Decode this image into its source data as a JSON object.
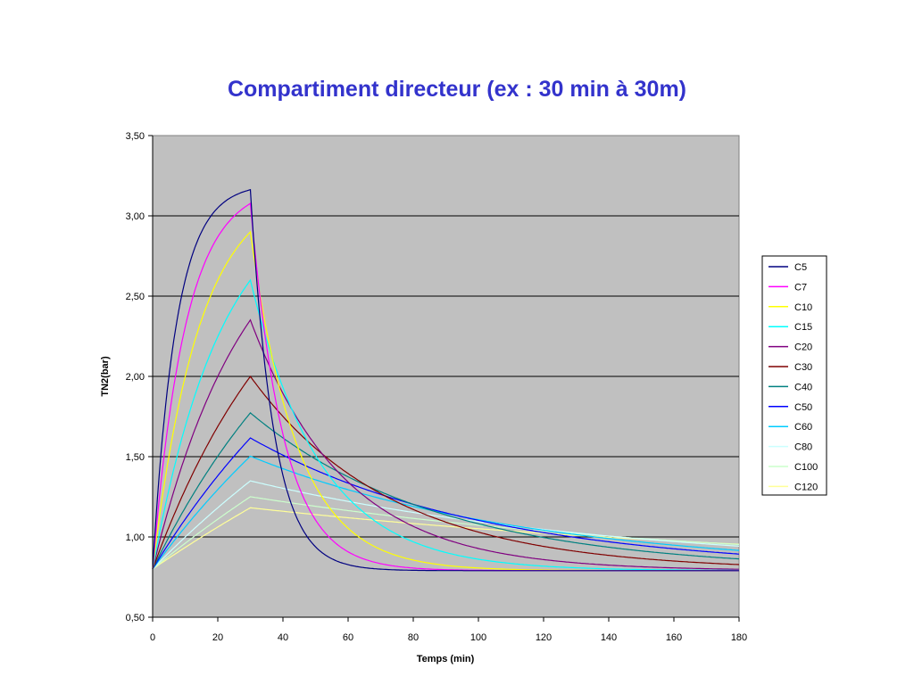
{
  "chart_data": {
    "type": "line",
    "title": "Compartiment directeur (ex : 30 min à 30m)",
    "xlabel": "Temps (min)",
    "ylabel": "TN2(bar)",
    "xlim": [
      0,
      180
    ],
    "ylim": [
      0.5,
      3.5
    ],
    "x_ticks": [
      "0",
      "20",
      "40",
      "60",
      "80",
      "100",
      "120",
      "140",
      "160",
      "180"
    ],
    "y_ticks": [
      "0,50",
      "1,00",
      "1,50",
      "2,00",
      "2,50",
      "3,00",
      "3,50"
    ],
    "grid": "horizontal",
    "legend_position": "right",
    "plot_background": "#c0c0c0",
    "series": [
      {
        "name": "C5",
        "color": "#000080",
        "half_time_min": 5
      },
      {
        "name": "C7",
        "color": "#ff00ff",
        "half_time_min": 7
      },
      {
        "name": "C10",
        "color": "#ffff00",
        "half_time_min": 10
      },
      {
        "name": "C15",
        "color": "#00ffff",
        "half_time_min": 15
      },
      {
        "name": "C20",
        "color": "#800080",
        "half_time_min": 20
      },
      {
        "name": "C30",
        "color": "#800000",
        "half_time_min": 30
      },
      {
        "name": "C40",
        "color": "#008080",
        "half_time_min": 40
      },
      {
        "name": "C50",
        "color": "#0000ff",
        "half_time_min": 50
      },
      {
        "name": "C60",
        "color": "#00ccff",
        "half_time_min": 60
      },
      {
        "name": "C80",
        "color": "#ccffff",
        "half_time_min": 80
      },
      {
        "name": "C100",
        "color": "#ccffcc",
        "half_time_min": 100
      },
      {
        "name": "C120",
        "color": "#ffff99",
        "half_time_min": 120
      }
    ],
    "model": {
      "initial_tension_bar": 0.8,
      "bottom_inspired_tension_bar": 3.2,
      "surface_tension_bar": 0.79,
      "bottom_time_end_min": 30
    }
  }
}
